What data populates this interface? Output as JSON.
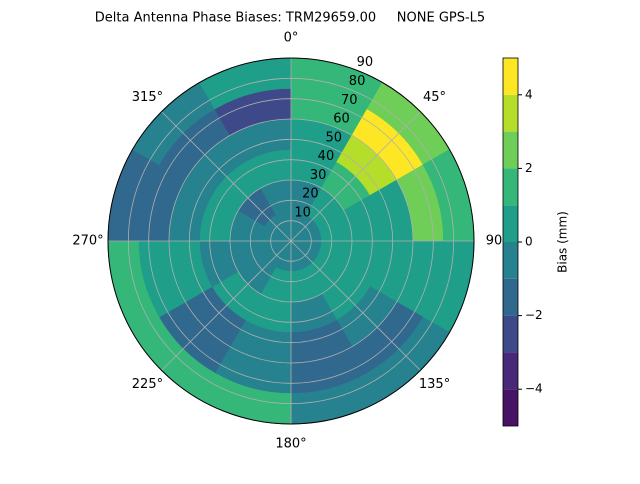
{
  "chart_data": {
    "type": "polar-contour",
    "title": "Delta Antenna Phase Biases: TRM29659.00     NONE GPS-L5",
    "colorbar_label": "Bias (mm)",
    "azimuth_edges": [
      0,
      30,
      60,
      90,
      120,
      150,
      180,
      210,
      240,
      270,
      300,
      330,
      360
    ],
    "zenith_edges": [
      0,
      15,
      30,
      45,
      60,
      75,
      90
    ],
    "z": [
      [
        -0.5,
        -0.5,
        -0.5,
        -0.5,
        -0.5,
        -0.5,
        -0.5,
        -0.5,
        -0.5,
        -0.5,
        -0.5,
        -0.5
      ],
      [
        -0.5,
        0.5,
        0.5,
        0.5,
        0.5,
        0.5,
        0.5,
        -0.5,
        -0.5,
        -0.5,
        -1.5,
        -0.5
      ],
      [
        0.5,
        1.5,
        0.5,
        0.5,
        0.5,
        -0.5,
        0.5,
        0.5,
        -0.5,
        0.5,
        0.5,
        0.5
      ],
      [
        0.5,
        3.5,
        0.5,
        0.5,
        -0.5,
        -1.5,
        -0.5,
        -1.5,
        0.5,
        -0.5,
        -0.5,
        -0.5
      ],
      [
        1.5,
        4.5,
        2.5,
        0.5,
        -1.5,
        -1.5,
        -0.5,
        -1.5,
        0.5,
        -1.5,
        -1.5,
        -2.5
      ],
      [
        1.5,
        2.5,
        1.5,
        0.5,
        -0.5,
        -0.5,
        1.5,
        1.5,
        1.5,
        -1.5,
        -0.5,
        0.5
      ]
    ],
    "levels": [
      -5,
      -4,
      -3,
      -2,
      -1,
      0,
      1,
      2,
      3,
      4,
      5
    ],
    "colors": [
      "#471365",
      "#482878",
      "#3e4989",
      "#31688e",
      "#26828e",
      "#1f9e89",
      "#35b779",
      "#6ece58",
      "#b5de2b",
      "#fde725"
    ],
    "rlim": [
      0,
      90
    ],
    "rticks": [
      10,
      20,
      30,
      40,
      50,
      60,
      70,
      80,
      90
    ],
    "thetaticks": [
      {
        "value": 0,
        "label": "0°"
      },
      {
        "value": 45,
        "label": "45°"
      },
      90,
      {
        "value": 135,
        "label": "135°"
      },
      {
        "value": 180,
        "label": "180°"
      },
      {
        "value": 225,
        "label": "225°"
      },
      {
        "value": 270,
        "label": "270°"
      },
      {
        "value": 315,
        "label": "315°"
      }
    ],
    "cticks": [
      {
        "value": -4,
        "label": "−4"
      },
      {
        "value": -2,
        "label": "−2"
      },
      0,
      2,
      4
    ],
    "grid": true
  }
}
